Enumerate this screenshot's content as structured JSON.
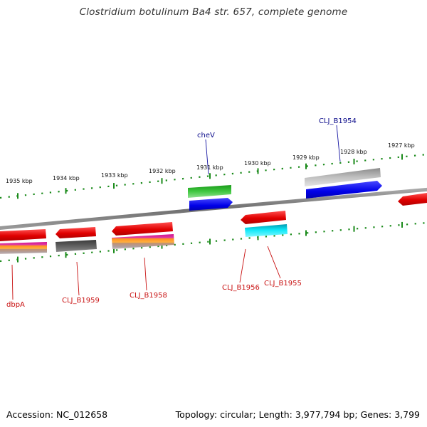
{
  "title": "Clostridium botulinum Ba4 str. 657, complete genome",
  "footer": {
    "accession": "Accession: NC_012658",
    "topology": "Topology: circular; Length: 3,977,794 bp; Genes: 3,799"
  },
  "colors": {
    "backbone": "#7a7a7a",
    "tick": "#1a7a1a",
    "forward_label": "#0a0a8a",
    "reverse_label": "#c81010",
    "red_gene": "#e01010",
    "blue_gene": "#1010e0",
    "green_gene": "#30b030",
    "gray_gene": "#b8b8b8",
    "dark_gray_gene": "#5a5a5a",
    "cyan_gene": "#10e0f0"
  },
  "ticks": [
    {
      "label": "1935 kbp"
    },
    {
      "label": "1934 kbp"
    },
    {
      "label": "1933 kbp"
    },
    {
      "label": "1932 kbp"
    },
    {
      "label": "1931 kbp"
    },
    {
      "label": "1930 kbp"
    },
    {
      "label": "1929 kbp"
    },
    {
      "label": "1928 kbp"
    },
    {
      "label": "1927 kbp"
    }
  ],
  "gene_labels": {
    "cheV": "cheV",
    "CLJ_B1954": "CLJ_B1954",
    "dbpA": "dbpA",
    "CLJ_B1959": "CLJ_B1959",
    "CLJ_B1958": "CLJ_B1958",
    "CLJ_B1956": "CLJ_B1956",
    "CLJ_B1955": "CLJ_B1955"
  }
}
